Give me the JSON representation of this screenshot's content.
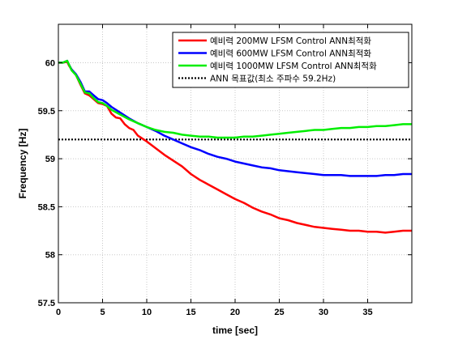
{
  "chart_data": {
    "type": "line",
    "xlabel": "time [sec]",
    "ylabel": "Frequency [Hz]",
    "xlim": [
      0,
      40
    ],
    "ylim": [
      57.5,
      60.4
    ],
    "xticks": [
      0,
      5,
      10,
      15,
      20,
      25,
      30,
      35
    ],
    "yticks": [
      57.5,
      58,
      58.5,
      59,
      59.5,
      60
    ],
    "ytick_labels": [
      "57.5",
      "58",
      "58.5",
      "59",
      "59.5",
      "60"
    ],
    "grid": true,
    "legend_position": "top-right",
    "series": [
      {
        "name": "예비력 200MW LFSM Control ANN최적화",
        "color": "#ff0000",
        "style": "solid",
        "x": [
          0,
          0.5,
          1.0,
          1.2,
          1.5,
          2.0,
          2.5,
          3.0,
          3.5,
          4.0,
          4.5,
          5.0,
          5.5,
          6.0,
          6.5,
          7.0,
          7.5,
          8.0,
          8.5,
          9,
          10,
          11,
          12,
          13,
          14,
          15,
          16,
          17,
          18,
          19,
          20,
          21,
          22,
          23,
          24,
          25,
          26,
          27,
          28,
          29,
          30,
          31,
          32,
          33,
          34,
          35,
          36,
          37,
          38,
          39,
          40
        ],
        "y": [
          60.0,
          60.0,
          60.01,
          59.97,
          59.93,
          59.87,
          59.77,
          59.68,
          59.66,
          59.62,
          59.58,
          59.57,
          59.55,
          59.47,
          59.43,
          59.42,
          59.36,
          59.32,
          59.3,
          59.24,
          59.18,
          59.11,
          59.04,
          58.98,
          58.92,
          58.84,
          58.78,
          58.73,
          58.68,
          58.63,
          58.58,
          58.54,
          58.49,
          58.45,
          58.42,
          58.38,
          58.36,
          58.33,
          58.31,
          58.29,
          58.28,
          58.27,
          58.26,
          58.25,
          58.25,
          58.24,
          58.24,
          58.23,
          58.24,
          58.25,
          58.25
        ]
      },
      {
        "name": "예비력 600MW LFSM Control ANN최적화",
        "color": "#0000ff",
        "style": "solid",
        "x": [
          0,
          0.5,
          1.0,
          1.2,
          1.5,
          2.0,
          2.5,
          3.0,
          3.5,
          4.0,
          4.5,
          5.0,
          5.5,
          6.0,
          7,
          8,
          9,
          10,
          11,
          12,
          13,
          14,
          15,
          16,
          17,
          18,
          19,
          20,
          21,
          22,
          23,
          24,
          25,
          26,
          27,
          28,
          29,
          30,
          31,
          32,
          33,
          34,
          35,
          36,
          37,
          38,
          39,
          40
        ],
        "y": [
          60.0,
          60.0,
          60.02,
          59.98,
          59.93,
          59.88,
          59.8,
          59.7,
          59.7,
          59.66,
          59.62,
          59.61,
          59.58,
          59.54,
          59.48,
          59.42,
          59.37,
          59.33,
          59.29,
          59.24,
          59.2,
          59.16,
          59.12,
          59.09,
          59.05,
          59.02,
          59.0,
          58.97,
          58.95,
          58.93,
          58.91,
          58.9,
          58.88,
          58.87,
          58.86,
          58.85,
          58.84,
          58.83,
          58.83,
          58.83,
          58.82,
          58.82,
          58.82,
          58.82,
          58.83,
          58.83,
          58.84,
          58.84
        ]
      },
      {
        "name": "예비력 1000MW LFSM Control ANN최적화",
        "color": "#00ee00",
        "style": "solid",
        "x": [
          0,
          0.5,
          1.0,
          1.2,
          1.5,
          2.0,
          2.5,
          3.0,
          3.5,
          4.0,
          4.5,
          5.0,
          5.5,
          6.0,
          7,
          8,
          9,
          10,
          11,
          12,
          13,
          14,
          15,
          16,
          17,
          18,
          19,
          20,
          21,
          22,
          23,
          24,
          25,
          26,
          27,
          28,
          29,
          30,
          31,
          32,
          33,
          34,
          35,
          36,
          37,
          38,
          39,
          40
        ],
        "y": [
          60.0,
          60.0,
          60.02,
          59.98,
          59.92,
          59.87,
          59.78,
          59.69,
          59.68,
          59.63,
          59.59,
          59.58,
          59.55,
          59.51,
          59.46,
          59.41,
          59.37,
          59.33,
          59.3,
          59.28,
          59.27,
          59.25,
          59.24,
          59.23,
          59.23,
          59.22,
          59.22,
          59.22,
          59.23,
          59.23,
          59.24,
          59.25,
          59.26,
          59.27,
          59.28,
          59.29,
          59.3,
          59.3,
          59.31,
          59.32,
          59.32,
          59.33,
          59.33,
          59.34,
          59.34,
          59.35,
          59.36,
          59.36
        ]
      },
      {
        "name": "ANN 목표값(최소 주파수 59.2Hz)",
        "color": "#000000",
        "style": "dotted",
        "x": [
          0,
          40
        ],
        "y": [
          59.2,
          59.2
        ]
      }
    ]
  }
}
